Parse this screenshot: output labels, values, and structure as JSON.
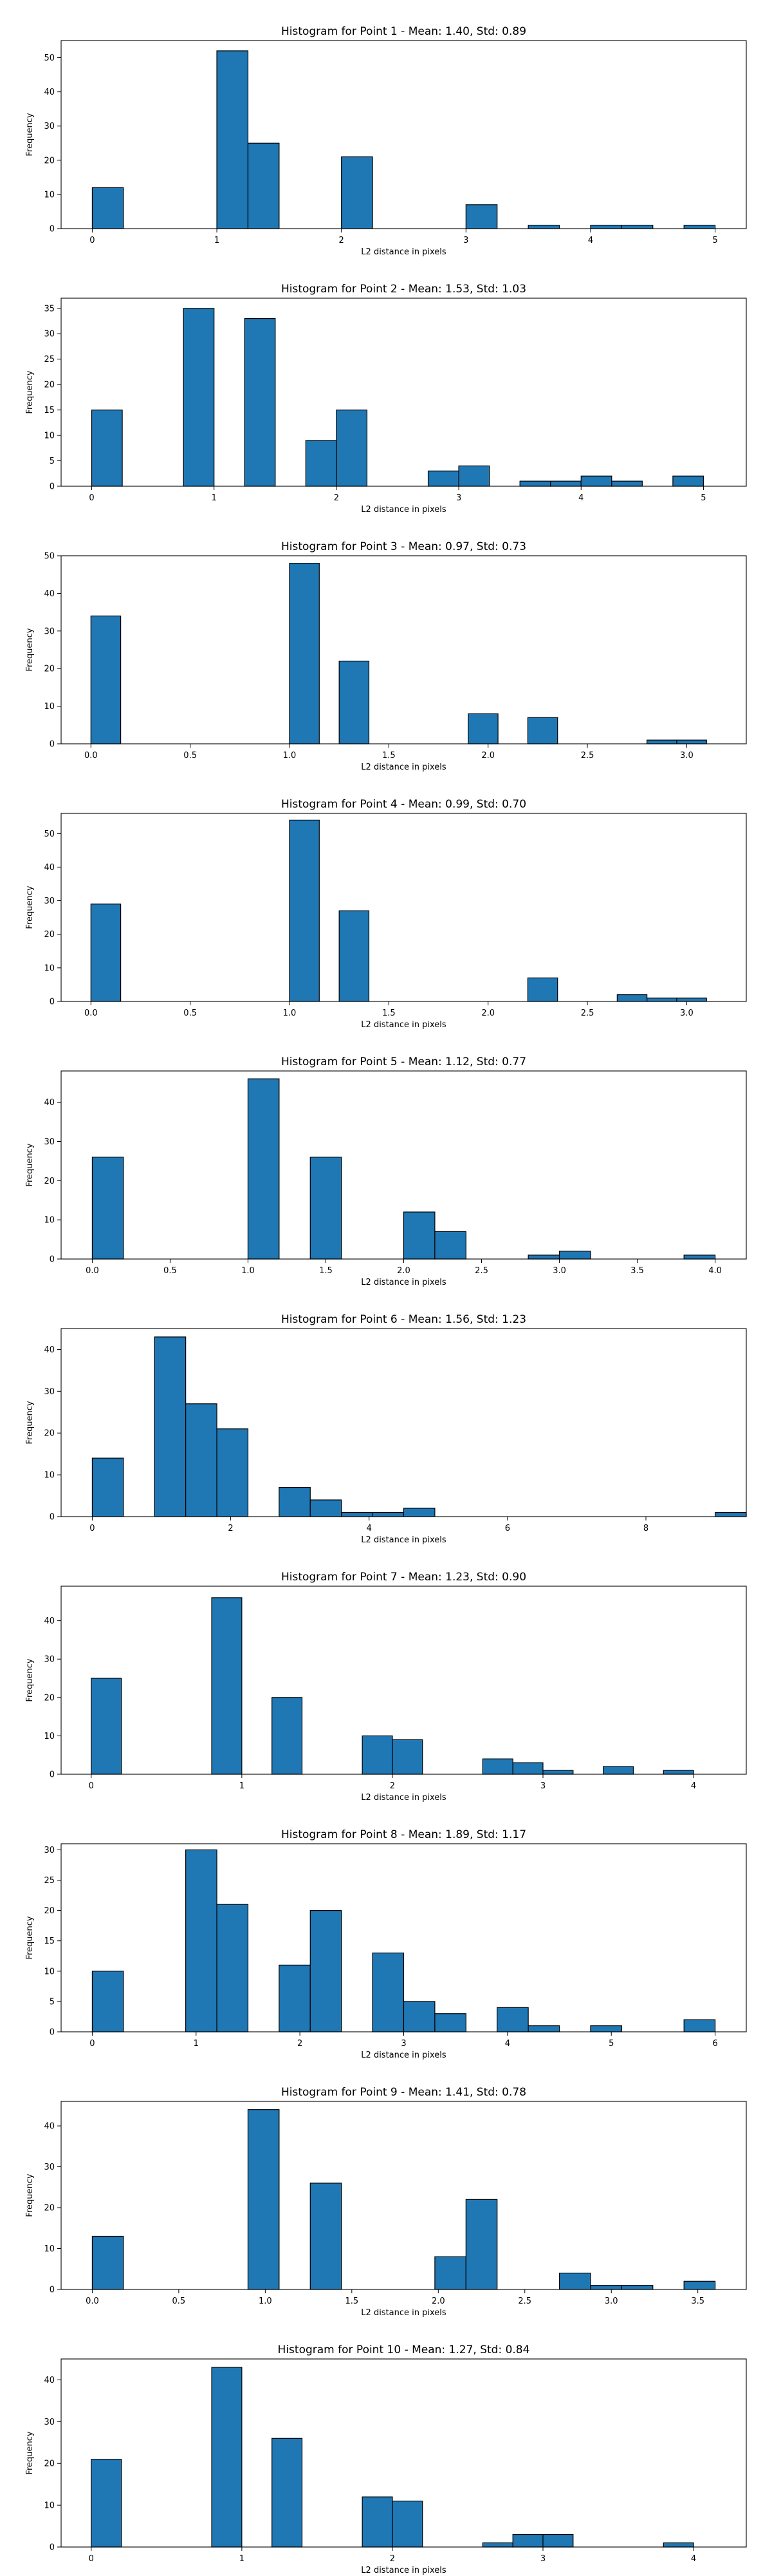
{
  "chart_data": [
    {
      "type": "bar",
      "title": "Histogram for Point 1 - Mean: 1.40, Std: 0.89",
      "xlabel": "L2 distance in pixels",
      "ylabel": "Frequency",
      "bar_color": "#1f77b4",
      "edge_color": "#000000",
      "xlim": [
        -0.25,
        5.25
      ],
      "ylim": [
        0,
        55
      ],
      "xticks": [
        0,
        1,
        2,
        3,
        4,
        5
      ],
      "xtick_labels": [
        "0",
        "1",
        "2",
        "3",
        "4",
        "5"
      ],
      "yticks": [
        0,
        10,
        20,
        30,
        40,
        50
      ],
      "bins": [
        [
          0,
          0.25
        ],
        [
          1,
          1.25
        ],
        [
          1.25,
          1.5
        ],
        [
          2,
          2.25
        ],
        [
          3,
          3.25
        ],
        [
          3.5,
          3.75
        ],
        [
          4,
          4.25
        ],
        [
          4.25,
          4.5
        ],
        [
          4.75,
          5
        ]
      ],
      "values": [
        12,
        52,
        25,
        21,
        7,
        1,
        1,
        1,
        1
      ]
    },
    {
      "type": "bar",
      "title": "Histogram for Point 2 - Mean: 1.53, Std: 1.03",
      "xlabel": "L2 distance in pixels",
      "ylabel": "Frequency",
      "bar_color": "#1f77b4",
      "edge_color": "#000000",
      "xlim": [
        -0.25,
        5.35
      ],
      "ylim": [
        0,
        37
      ],
      "xticks": [
        0,
        1,
        2,
        3,
        4,
        5
      ],
      "xtick_labels": [
        "0",
        "1",
        "2",
        "3",
        "4",
        "5"
      ],
      "yticks": [
        0,
        5,
        10,
        15,
        20,
        25,
        30,
        35
      ],
      "bins": [
        [
          0,
          0.25
        ],
        [
          0.75,
          1
        ],
        [
          1.25,
          1.5
        ],
        [
          1.75,
          2
        ],
        [
          2,
          2.25
        ],
        [
          2.75,
          3
        ],
        [
          3,
          3.25
        ],
        [
          3.5,
          3.75
        ],
        [
          3.75,
          4
        ],
        [
          4,
          4.25
        ],
        [
          4.25,
          4.5
        ],
        [
          4.75,
          5
        ]
      ],
      "values": [
        15,
        35,
        33,
        9,
        15,
        3,
        4,
        1,
        1,
        2,
        1,
        2
      ]
    },
    {
      "type": "bar",
      "title": "Histogram for Point 3 - Mean: 0.97, Std: 0.73",
      "xlabel": "L2 distance in pixels",
      "ylabel": "Frequency",
      "bar_color": "#1f77b4",
      "edge_color": "#000000",
      "xlim": [
        -0.15,
        3.3
      ],
      "ylim": [
        0,
        50
      ],
      "xticks": [
        0,
        0.5,
        1,
        1.5,
        2,
        2.5,
        3
      ],
      "xtick_labels": [
        "0.0",
        "0.5",
        "1.0",
        "1.5",
        "2.0",
        "2.5",
        "3.0"
      ],
      "yticks": [
        0,
        10,
        20,
        30,
        40,
        50
      ],
      "bins": [
        [
          0,
          0.15
        ],
        [
          1,
          1.15
        ],
        [
          1.25,
          1.4
        ],
        [
          1.9,
          2.05
        ],
        [
          2.2,
          2.35
        ],
        [
          2.8,
          2.95
        ],
        [
          2.95,
          3.1
        ]
      ],
      "values": [
        34,
        48,
        22,
        8,
        7,
        1,
        1
      ]
    },
    {
      "type": "bar",
      "title": "Histogram for Point 4 - Mean: 0.99, Std: 0.70",
      "xlabel": "L2 distance in pixels",
      "ylabel": "Frequency",
      "bar_color": "#1f77b4",
      "edge_color": "#000000",
      "xlim": [
        -0.15,
        3.3
      ],
      "ylim": [
        0,
        56
      ],
      "xticks": [
        0,
        0.5,
        1,
        1.5,
        2,
        2.5,
        3
      ],
      "xtick_labels": [
        "0.0",
        "0.5",
        "1.0",
        "1.5",
        "2.0",
        "2.5",
        "3.0"
      ],
      "yticks": [
        0,
        10,
        20,
        30,
        40,
        50
      ],
      "bins": [
        [
          0,
          0.15
        ],
        [
          1,
          1.15
        ],
        [
          1.25,
          1.4
        ],
        [
          2.2,
          2.35
        ],
        [
          2.65,
          2.8
        ],
        [
          2.8,
          2.95
        ],
        [
          2.95,
          3.1
        ]
      ],
      "values": [
        29,
        54,
        27,
        7,
        2,
        1,
        1
      ]
    },
    {
      "type": "bar",
      "title": "Histogram for Point 5 - Mean: 1.12, Std: 0.77",
      "xlabel": "L2 distance in pixels",
      "ylabel": "Frequency",
      "bar_color": "#1f77b4",
      "edge_color": "#000000",
      "xlim": [
        -0.2,
        4.2
      ],
      "ylim": [
        0,
        48
      ],
      "xticks": [
        0,
        0.5,
        1,
        1.5,
        2,
        2.5,
        3,
        3.5,
        4
      ],
      "xtick_labels": [
        "0.0",
        "0.5",
        "1.0",
        "1.5",
        "2.0",
        "2.5",
        "3.0",
        "3.5",
        "4.0"
      ],
      "yticks": [
        0,
        10,
        20,
        30,
        40
      ],
      "bins": [
        [
          0,
          0.2
        ],
        [
          1,
          1.2
        ],
        [
          1.4,
          1.6
        ],
        [
          2,
          2.2
        ],
        [
          2.2,
          2.4
        ],
        [
          2.8,
          3
        ],
        [
          3,
          3.2
        ],
        [
          3.8,
          4
        ]
      ],
      "values": [
        26,
        46,
        26,
        12,
        7,
        1,
        2,
        1
      ]
    },
    {
      "type": "bar",
      "title": "Histogram for Point 6 - Mean: 1.56, Std: 1.23",
      "xlabel": "L2 distance in pixels",
      "ylabel": "Frequency",
      "bar_color": "#1f77b4",
      "edge_color": "#000000",
      "xlim": [
        -0.45,
        9.45
      ],
      "ylim": [
        0,
        45
      ],
      "xticks": [
        0,
        2,
        4,
        6,
        8
      ],
      "xtick_labels": [
        "0",
        "2",
        "4",
        "6",
        "8"
      ],
      "yticks": [
        0,
        10,
        20,
        30,
        40
      ],
      "bins": [
        [
          0,
          0.45
        ],
        [
          0.9,
          1.35
        ],
        [
          1.35,
          1.8
        ],
        [
          1.8,
          2.25
        ],
        [
          2.7,
          3.15
        ],
        [
          3.15,
          3.6
        ],
        [
          3.6,
          4.05
        ],
        [
          4.05,
          4.5
        ],
        [
          4.5,
          4.95
        ],
        [
          9,
          9.45
        ]
      ],
      "values": [
        14,
        43,
        27,
        21,
        7,
        4,
        1,
        1,
        2,
        1
      ]
    },
    {
      "type": "bar",
      "title": "Histogram for Point 7 - Mean: 1.23, Std: 0.90",
      "xlabel": "L2 distance in pixels",
      "ylabel": "Frequency",
      "bar_color": "#1f77b4",
      "edge_color": "#000000",
      "xlim": [
        -0.2,
        4.35
      ],
      "ylim": [
        0,
        49
      ],
      "xticks": [
        0,
        1,
        2,
        3,
        4
      ],
      "xtick_labels": [
        "0",
        "1",
        "2",
        "3",
        "4"
      ],
      "yticks": [
        0,
        10,
        20,
        30,
        40
      ],
      "bins": [
        [
          0,
          0.2
        ],
        [
          0.8,
          1
        ],
        [
          1.2,
          1.4
        ],
        [
          1.8,
          2
        ],
        [
          2,
          2.2
        ],
        [
          2.6,
          2.8
        ],
        [
          2.8,
          3
        ],
        [
          3,
          3.2
        ],
        [
          3.4,
          3.6
        ],
        [
          3.8,
          4
        ]
      ],
      "values": [
        25,
        46,
        20,
        10,
        9,
        4,
        3,
        1,
        2,
        1
      ]
    },
    {
      "type": "bar",
      "title": "Histogram for Point 8 - Mean: 1.89, Std: 1.17",
      "xlabel": "L2 distance in pixels",
      "ylabel": "Frequency",
      "bar_color": "#1f77b4",
      "edge_color": "#000000",
      "xlim": [
        -0.3,
        6.3
      ],
      "ylim": [
        0,
        31
      ],
      "xticks": [
        0,
        1,
        2,
        3,
        4,
        5,
        6
      ],
      "xtick_labels": [
        "0",
        "1",
        "2",
        "3",
        "4",
        "5",
        "6"
      ],
      "yticks": [
        0,
        5,
        10,
        15,
        20,
        25,
        30
      ],
      "bins": [
        [
          0,
          0.3
        ],
        [
          0.9,
          1.2
        ],
        [
          1.2,
          1.5
        ],
        [
          1.8,
          2.1
        ],
        [
          2.1,
          2.4
        ],
        [
          2.7,
          3
        ],
        [
          3,
          3.3
        ],
        [
          3.3,
          3.6
        ],
        [
          3.9,
          4.2
        ],
        [
          4.2,
          4.5
        ],
        [
          4.8,
          5.1
        ],
        [
          5.7,
          6
        ]
      ],
      "values": [
        10,
        30,
        21,
        11,
        20,
        13,
        5,
        3,
        4,
        1,
        1,
        2
      ]
    },
    {
      "type": "bar",
      "title": "Histogram for Point 9 - Mean: 1.41, Std: 0.78",
      "xlabel": "L2 distance in pixels",
      "ylabel": "Frequency",
      "bar_color": "#1f77b4",
      "edge_color": "#000000",
      "xlim": [
        -0.18,
        3.78
      ],
      "ylim": [
        0,
        46
      ],
      "xticks": [
        0,
        0.5,
        1,
        1.5,
        2,
        2.5,
        3,
        3.5
      ],
      "xtick_labels": [
        "0.0",
        "0.5",
        "1.0",
        "1.5",
        "2.0",
        "2.5",
        "3.0",
        "3.5"
      ],
      "yticks": [
        0,
        10,
        20,
        30,
        40
      ],
      "bins": [
        [
          0,
          0.18
        ],
        [
          0.9,
          1.08
        ],
        [
          1.26,
          1.44
        ],
        [
          1.98,
          2.16
        ],
        [
          2.16,
          2.34
        ],
        [
          2.7,
          2.88
        ],
        [
          2.88,
          3.06
        ],
        [
          3.06,
          3.24
        ],
        [
          3.42,
          3.6
        ]
      ],
      "values": [
        13,
        44,
        26,
        8,
        22,
        4,
        1,
        1,
        2
      ]
    },
    {
      "type": "bar",
      "title": "Histogram for Point 10 - Mean: 1.27, Std: 0.84",
      "xlabel": "L2 distance in pixels",
      "ylabel": "Frequency",
      "bar_color": "#1f77b4",
      "edge_color": "#000000",
      "xlim": [
        -0.2,
        4.35
      ],
      "ylim": [
        0,
        45
      ],
      "xticks": [
        0,
        1,
        2,
        3,
        4
      ],
      "xtick_labels": [
        "0",
        "1",
        "2",
        "3",
        "4"
      ],
      "yticks": [
        0,
        10,
        20,
        30,
        40
      ],
      "bins": [
        [
          0,
          0.2
        ],
        [
          0.8,
          1
        ],
        [
          1.2,
          1.4
        ],
        [
          1.8,
          2
        ],
        [
          2,
          2.2
        ],
        [
          2.6,
          2.8
        ],
        [
          2.8,
          3
        ],
        [
          3,
          3.2
        ],
        [
          3.8,
          4
        ]
      ],
      "values": [
        21,
        43,
        26,
        12,
        11,
        1,
        3,
        3,
        1
      ]
    }
  ]
}
